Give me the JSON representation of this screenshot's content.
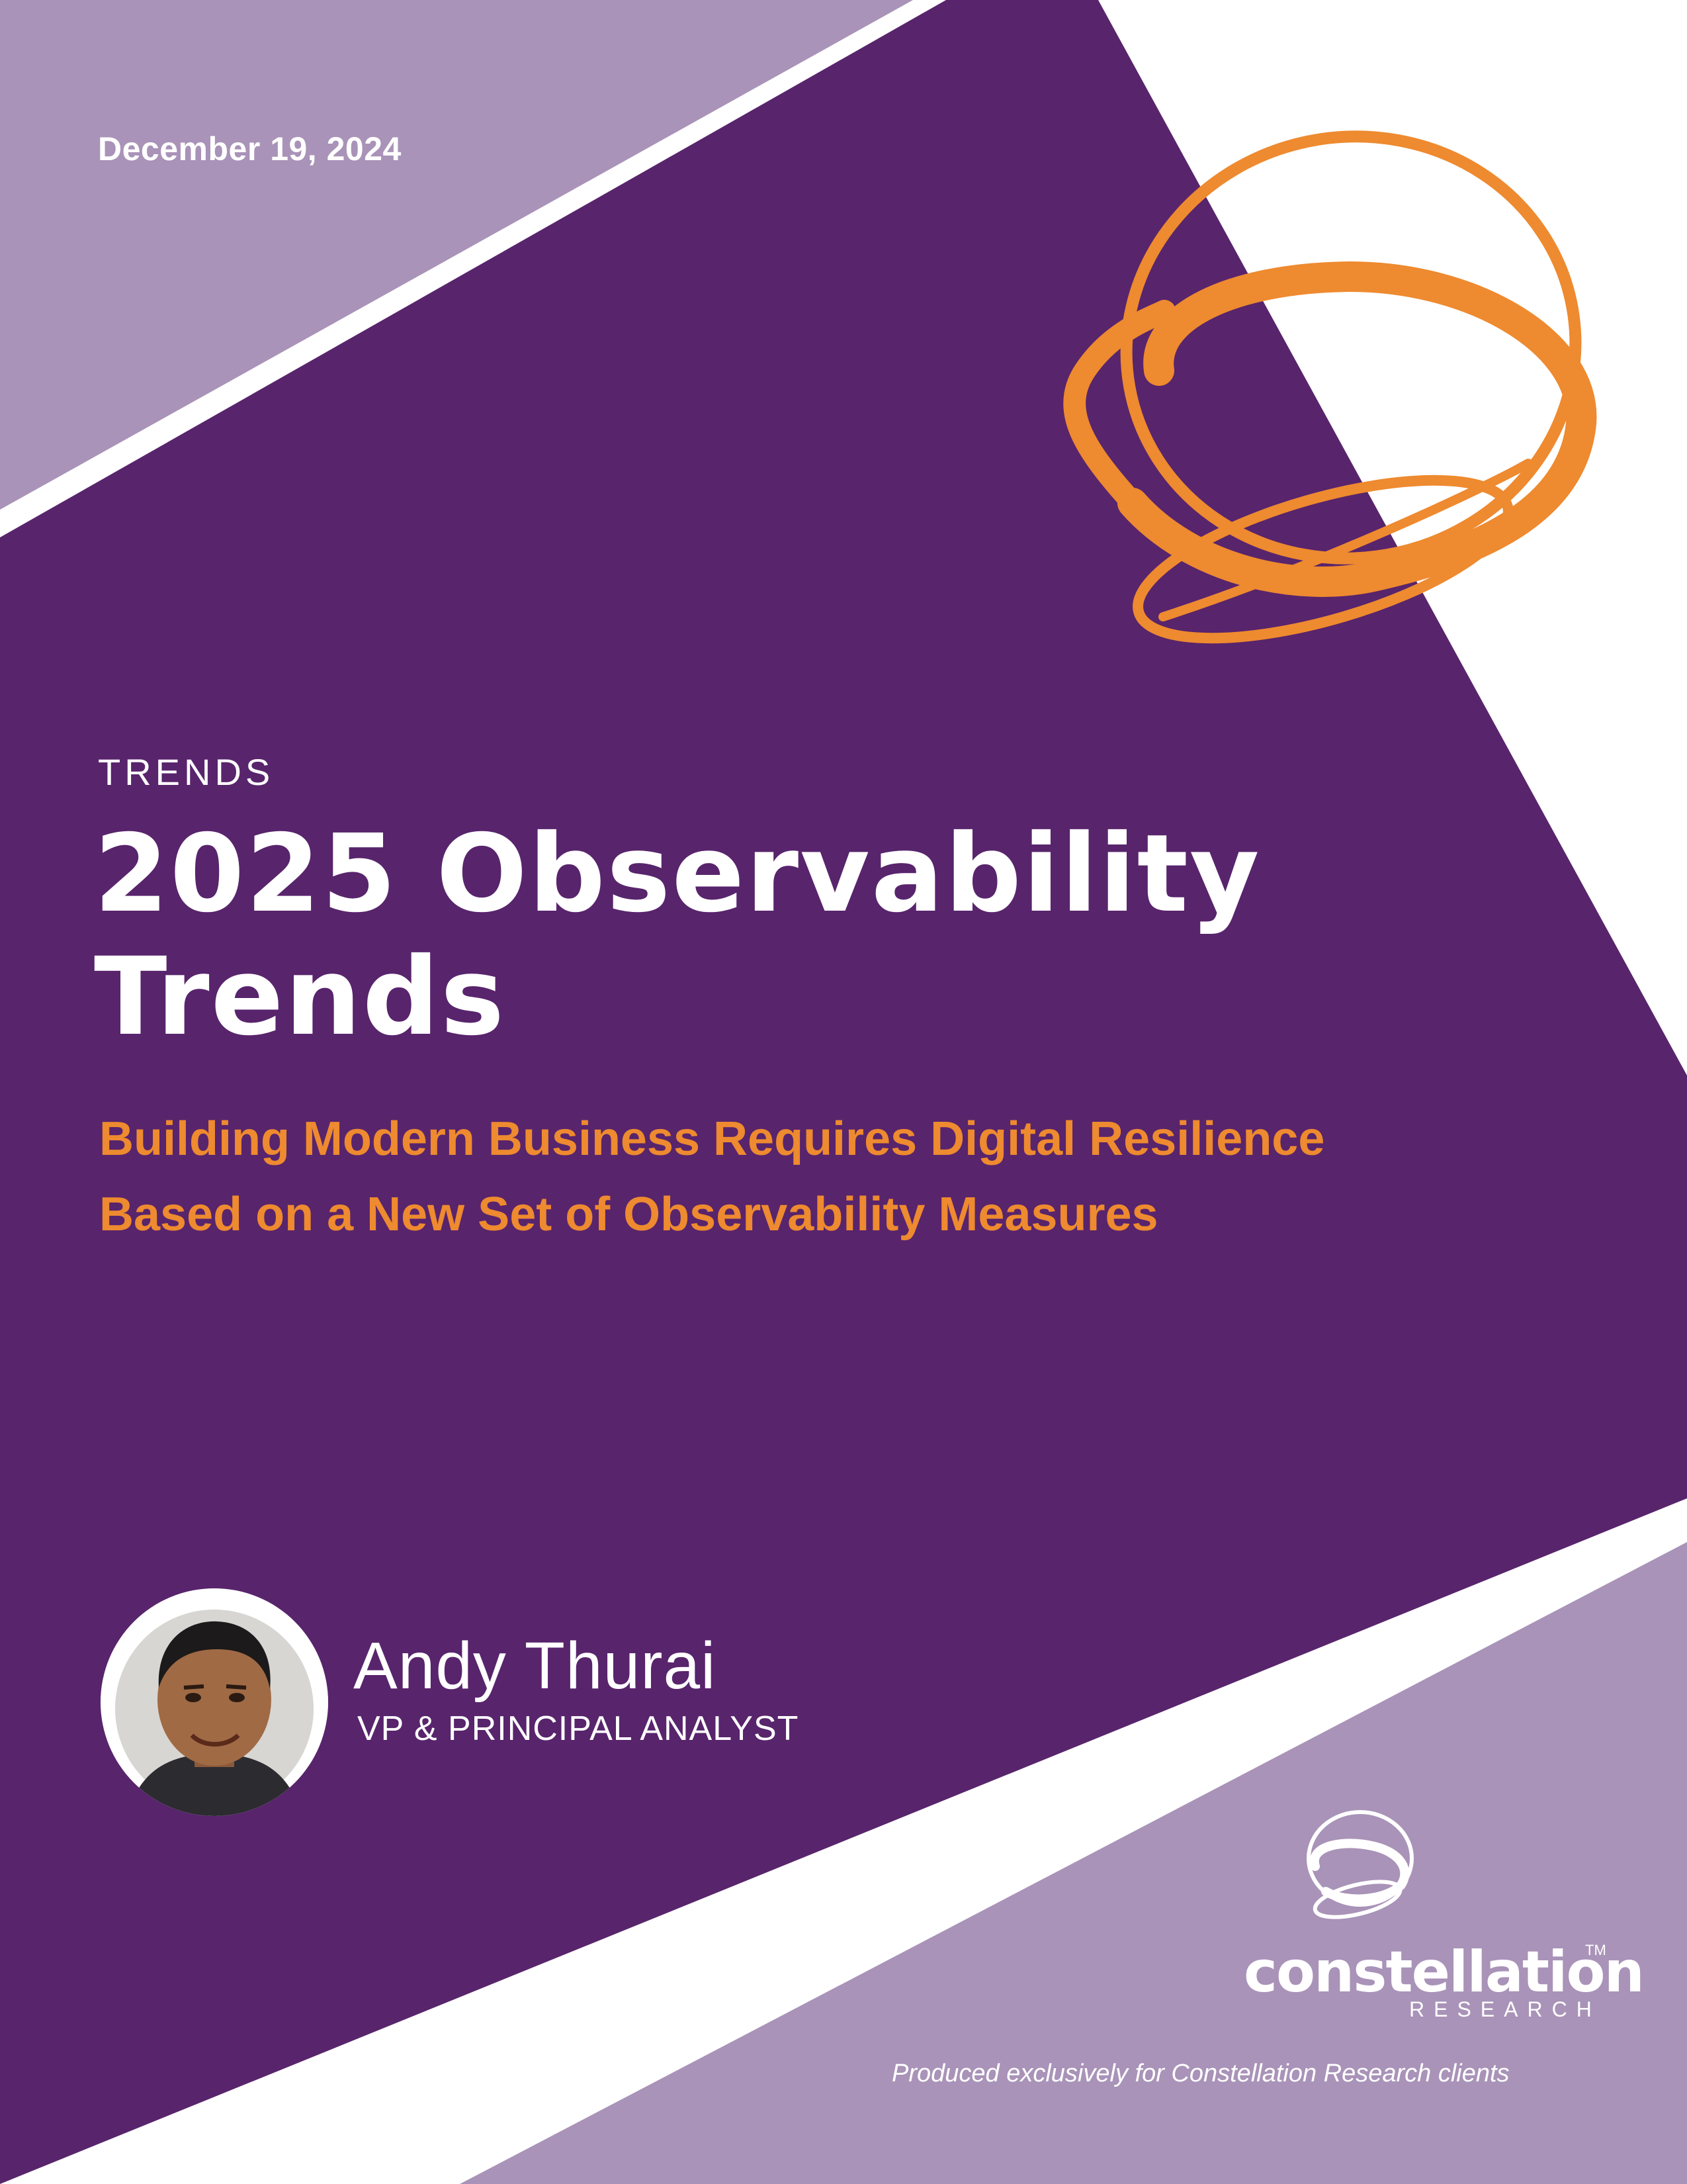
{
  "header": {
    "date": "December 19, 2024"
  },
  "cover": {
    "eyebrow": "TRENDS",
    "title_line1": "2025 Observability",
    "title_line2": "Trends",
    "subtitle_line1": "Building Modern Business Requires Digital Resilience",
    "subtitle_line2": "Based on a New Set of Observability Measures"
  },
  "author": {
    "name": "Andy Thurai",
    "role": "VP & PRINCIPAL ANALYST",
    "photo_icon": "author-headshot"
  },
  "brand": {
    "logo_word": "constellation",
    "logo_tm": "TM",
    "logo_sub": "RESEARCH",
    "logo_icon": "constellation-orbit-logo",
    "ribbon_icon": "orange-orbit-ribbon"
  },
  "footer": {
    "note": "Produced exclusively for Constellation Research clients"
  },
  "colors": {
    "primary_purple": "#58246C",
    "light_purple": "#A993B8",
    "accent_orange": "#EE8A2F",
    "white": "#FFFFFF"
  }
}
